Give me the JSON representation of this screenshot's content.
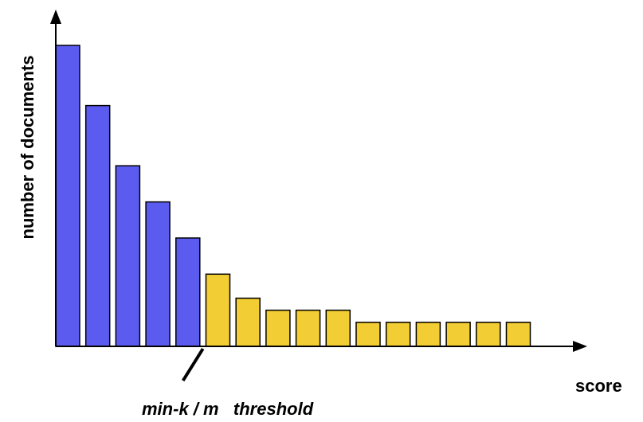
{
  "chart_data": {
    "type": "bar",
    "xlabel": "score",
    "ylabel": "number of documents",
    "ylim": [
      0,
      10
    ],
    "values": [
      10,
      8,
      6,
      4.8,
      3.6,
      2.4,
      1.6,
      1.2,
      1.2,
      1.2,
      0.8,
      0.8,
      0.8,
      0.8,
      0.8,
      0.8
    ],
    "colors": {
      "above_threshold": "#5b5bf0",
      "below_threshold": "#f2cd33",
      "outline": "#000000"
    },
    "threshold": {
      "label": "min-k / m   threshold",
      "after_bar_index": 4
    },
    "grid": false,
    "legend": "none"
  }
}
